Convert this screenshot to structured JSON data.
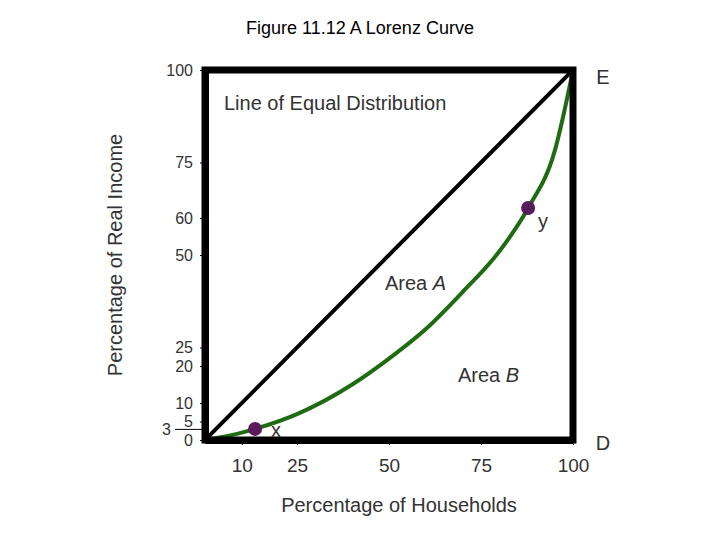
{
  "chart_data": {
    "type": "line",
    "title": "Figure 11.12 A Lorenz Curve",
    "x_label": "Percentage of Households",
    "y_label": "Percentage of Real Income",
    "xlim": [
      0,
      100
    ],
    "ylim": [
      0,
      100
    ],
    "xticks": [
      10,
      25,
      50,
      75,
      100
    ],
    "yticks": [
      0,
      3,
      5,
      10,
      20,
      25,
      50,
      60,
      75,
      100
    ],
    "series": [
      {
        "name": "Line of Equal Distribution",
        "type": "line",
        "color": "#000000",
        "x": [
          0,
          100
        ],
        "values": [
          0,
          100
        ]
      },
      {
        "type": "line",
        "color": "#1e6b12",
        "x": [
          0,
          10,
          13.6,
          25,
          40,
          50,
          60,
          70,
          80,
          87.8,
          95,
          100
        ],
        "values": [
          0,
          2,
          3,
          7,
          15,
          22,
          30,
          40,
          51,
          62.7,
          78,
          100
        ]
      },
      {
        "type": "scatter",
        "color": "#5b1a5b",
        "marker": "circle",
        "x": [
          13.6,
          87.8
        ],
        "values": [
          3,
          62.7
        ],
        "point_labels": [
          "x",
          "y"
        ]
      }
    ],
    "annotations": [
      "Area A",
      "Area B",
      "E",
      "D"
    ]
  }
}
